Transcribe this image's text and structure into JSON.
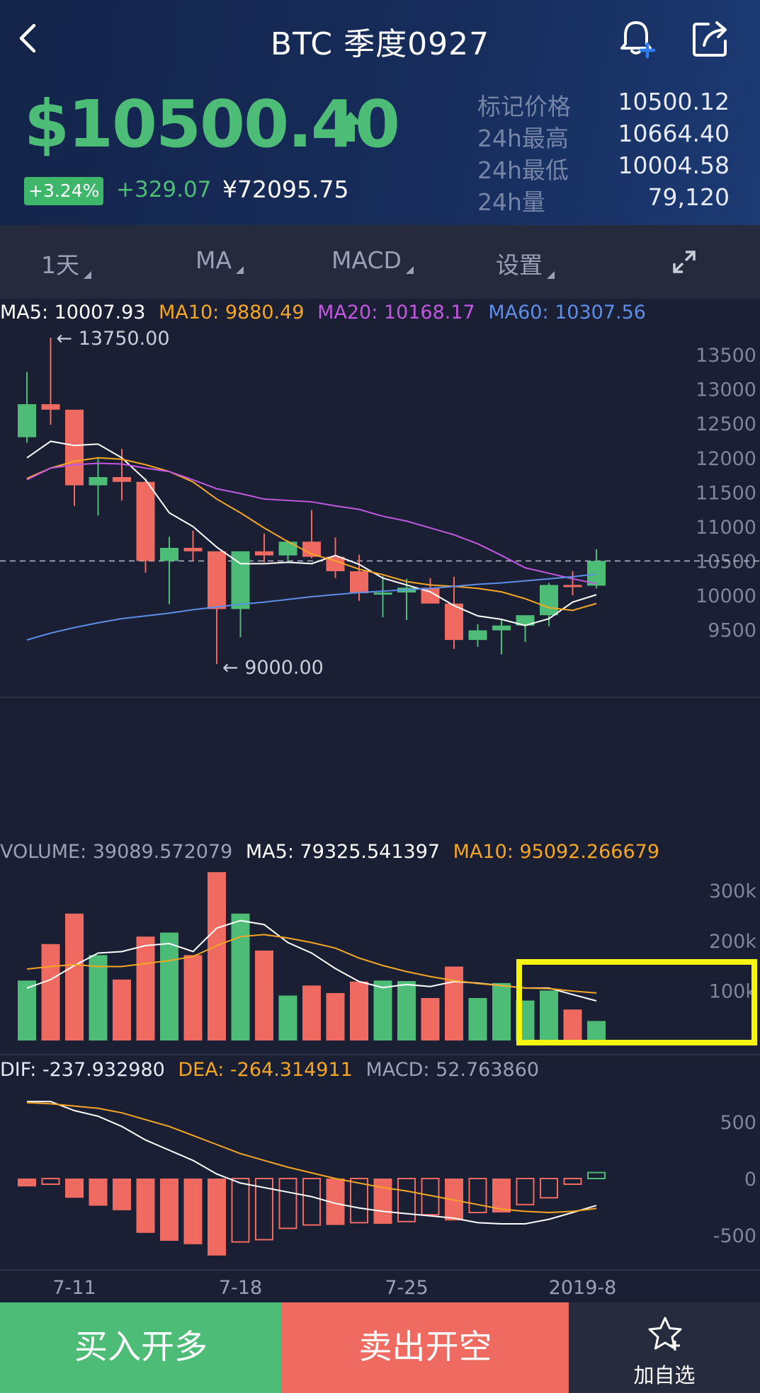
{
  "header": {
    "title": "BTC 季度0927",
    "price": "$10500.40",
    "change_pct": "+3.24%",
    "change_abs": "+329.07",
    "cny_price": "¥72095.75",
    "stats": [
      {
        "label": "标记价格",
        "value": "10500.12"
      },
      {
        "label": "24h最高",
        "value": "10664.40"
      },
      {
        "label": "24h最低",
        "value": "10004.58"
      },
      {
        "label": "24h量",
        "value": "79,120"
      }
    ]
  },
  "toolbar": {
    "period": "1天",
    "ma": "MA",
    "macd": "MACD",
    "settings": "设置"
  },
  "legends": {
    "ma5": "MA5: 10007.93",
    "ma10": "MA10: 9880.49",
    "ma20": "MA20: 10168.17",
    "ma60": "MA60: 10307.56",
    "volume": "VOLUME: 39089.572079",
    "vol_ma5": "MA5: 79325.541397",
    "vol_ma10": "MA10: 95092.266679",
    "dif": "DIF: -237.932980",
    "dea": "DEA: -264.314911",
    "macd": "MACD: 52.763860"
  },
  "colors": {
    "up": "#4dbc77",
    "down": "#ef6a60",
    "ma5": "#ffffff",
    "ma10": "#f5a623",
    "ma20": "#c257e0",
    "ma60": "#5d8ee8",
    "highlight": "#f5f50f"
  },
  "bottom": {
    "buy": "买入开多",
    "sell": "卖出开空",
    "favorite": "加自选"
  },
  "chart_data": {
    "type": "candlestick",
    "price_axis_ticks": [
      "13500",
      "13000",
      "12500",
      "12000",
      "11500",
      "11000",
      "10500",
      "10000",
      "9500"
    ],
    "volume_axis_ticks": [
      "300k",
      "200k",
      "100k"
    ],
    "macd_axis_ticks": [
      "500",
      "0",
      "-500"
    ],
    "x_tick_labels": [
      "7-11",
      "7-18",
      "7-25",
      "2019-8"
    ],
    "max_label": "← 13750.00",
    "min_label": "← 9000.00",
    "last_price_line": 10500,
    "price_range": [
      8960,
      13800
    ],
    "volume_range": [
      0,
      340000
    ],
    "macd_range": [
      -780,
      780
    ],
    "candles": [
      {
        "o": 12300,
        "h": 13250,
        "l": 12220,
        "c": 12780
      },
      {
        "o": 12780,
        "h": 13750,
        "l": 12480,
        "c": 12700
      },
      {
        "o": 12700,
        "h": 12700,
        "l": 11300,
        "c": 11600
      },
      {
        "o": 11600,
        "h": 12000,
        "l": 11160,
        "c": 11720
      },
      {
        "o": 11720,
        "h": 12130,
        "l": 11380,
        "c": 11650
      },
      {
        "o": 11650,
        "h": 11700,
        "l": 10330,
        "c": 10500
      },
      {
        "o": 10500,
        "h": 10850,
        "l": 9870,
        "c": 10690
      },
      {
        "o": 10690,
        "h": 10940,
        "l": 10500,
        "c": 10640
      },
      {
        "o": 10640,
        "h": 10640,
        "l": 9000,
        "c": 9800
      },
      {
        "o": 9800,
        "h": 10640,
        "l": 9390,
        "c": 10640
      },
      {
        "o": 10640,
        "h": 10900,
        "l": 10480,
        "c": 10580
      },
      {
        "o": 10580,
        "h": 10800,
        "l": 10470,
        "c": 10780
      },
      {
        "o": 10780,
        "h": 11240,
        "l": 10540,
        "c": 10560
      },
      {
        "o": 10560,
        "h": 10840,
        "l": 10250,
        "c": 10350
      },
      {
        "o": 10350,
        "h": 10590,
        "l": 9920,
        "c": 10030
      },
      {
        "o": 10030,
        "h": 10280,
        "l": 9680,
        "c": 10040
      },
      {
        "o": 10040,
        "h": 10240,
        "l": 9640,
        "c": 10110
      },
      {
        "o": 10110,
        "h": 10250,
        "l": 9880,
        "c": 9880
      },
      {
        "o": 9880,
        "h": 10270,
        "l": 9220,
        "c": 9350
      },
      {
        "o": 9350,
        "h": 9580,
        "l": 9250,
        "c": 9490
      },
      {
        "o": 9490,
        "h": 9640,
        "l": 9140,
        "c": 9560
      },
      {
        "o": 9560,
        "h": 9680,
        "l": 9320,
        "c": 9710
      },
      {
        "o": 9710,
        "h": 10180,
        "l": 9550,
        "c": 10150
      },
      {
        "o": 10150,
        "h": 10350,
        "l": 10000,
        "c": 10140
      },
      {
        "o": 10140,
        "h": 10670,
        "l": 10100,
        "c": 10500
      }
    ],
    "ma_series": [
      {
        "name": "MA5",
        "values": [
          12000,
          12240,
          12180,
          12200,
          12000,
          11680,
          11200,
          11000,
          10700,
          10460,
          10460,
          10480,
          10460,
          10580,
          10450,
          10250,
          10150,
          10050,
          9850,
          9700,
          9650,
          9560,
          9660,
          9900,
          10007.93
        ]
      },
      {
        "name": "MA10",
        "values": [
          11700,
          11850,
          11950,
          12000,
          11980,
          11900,
          11800,
          11650,
          11400,
          11200,
          10980,
          10780,
          10600,
          10500,
          10380,
          10300,
          10200,
          10150,
          10130,
          10100,
          10050,
          9950,
          9820,
          9780,
          9880.49
        ]
      },
      {
        "name": "MA20",
        "values": [
          11680,
          11850,
          11900,
          11920,
          11910,
          11850,
          11800,
          11680,
          11550,
          11480,
          11400,
          11380,
          11360,
          11300,
          11250,
          11150,
          11080,
          10980,
          10880,
          10750,
          10580,
          10400,
          10320,
          10240,
          10168.17
        ]
      },
      {
        "name": "MA60",
        "values": [
          9350,
          9450,
          9530,
          9600,
          9660,
          9700,
          9740,
          9790,
          9830,
          9870,
          9900,
          9940,
          9980,
          10010,
          10040,
          10060,
          10080,
          10100,
          10130,
          10160,
          10180,
          10210,
          10240,
          10270,
          10307.56
        ]
      }
    ],
    "volume": [
      120000,
      193000,
      254000,
      171000,
      122000,
      208000,
      216000,
      171000,
      337000,
      254000,
      180000,
      90000,
      110000,
      95000,
      118000,
      120000,
      119000,
      85000,
      148000,
      85000,
      115000,
      80000,
      100000,
      62000,
      39089.572079
    ],
    "volume_ma": [
      {
        "name": "MA5",
        "values": [
          105000,
          122000,
          150000,
          175000,
          178000,
          190000,
          194000,
          178000,
          225000,
          240000,
          232000,
          196000,
          175000,
          144000,
          118000,
          106000,
          112000,
          108000,
          118000,
          115000,
          110000,
          105000,
          105000,
          92000,
          79325.541397
        ]
      },
      {
        "name": "MA10",
        "values": [
          143000,
          148000,
          152000,
          148000,
          148000,
          154000,
          160000,
          168000,
          190000,
          208000,
          212000,
          205000,
          196000,
          185000,
          165000,
          150000,
          138000,
          128000,
          120000,
          114000,
          110000,
          105000,
          104000,
          99000,
          95092.266679
        ]
      }
    ],
    "dif": [
      680,
      680,
      600,
      550,
      460,
      340,
      250,
      160,
      40,
      -40,
      -80,
      -120,
      -160,
      -220,
      -260,
      -290,
      -310,
      -330,
      -350,
      -390,
      -400,
      -400,
      -360,
      -300,
      -237.93298
    ],
    "dea": [
      670,
      660,
      640,
      620,
      580,
      520,
      460,
      380,
      300,
      220,
      160,
      100,
      50,
      0,
      -40,
      -80,
      -110,
      -150,
      -190,
      -230,
      -270,
      -290,
      -300,
      -290,
      -264.314911
    ],
    "macd_hist": [
      -70,
      -50,
      -170,
      -240,
      -280,
      -480,
      -550,
      -580,
      -680,
      -560,
      -540,
      -440,
      -410,
      -410,
      -390,
      -400,
      -380,
      -320,
      -370,
      -300,
      -300,
      -230,
      -170,
      -50,
      52.76386
    ]
  }
}
